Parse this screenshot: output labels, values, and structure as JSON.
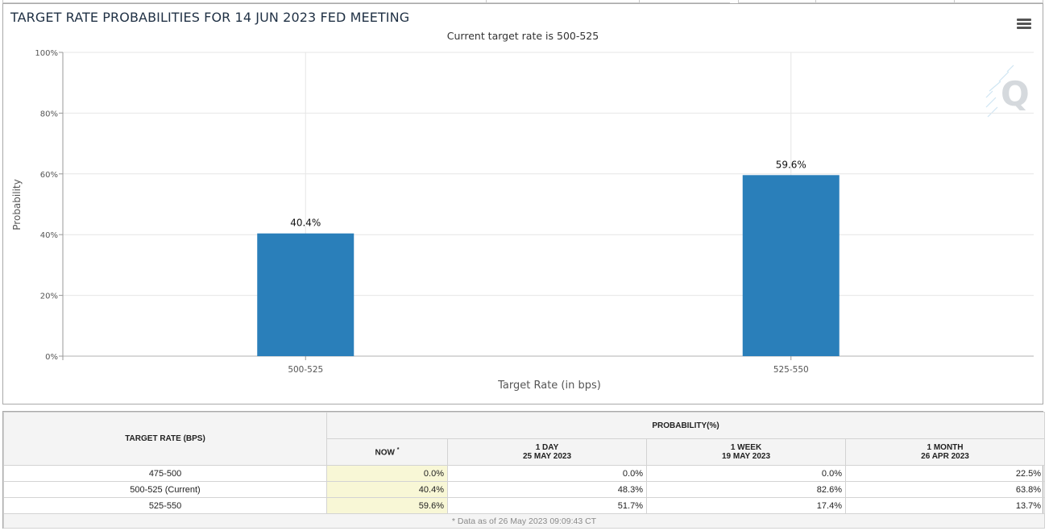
{
  "chart": {
    "title": "TARGET RATE PROBABILITIES FOR 14 JUN 2023 FED MEETING",
    "subtitle": "Current target rate is 500-525",
    "menu_icon": "hamburger-menu-icon",
    "watermark_icon": "quikstrike-q-logo",
    "watermark_letter": "Q"
  },
  "chart_data": {
    "type": "bar",
    "title": "TARGET RATE PROBABILITIES FOR 14 JUN 2023 FED MEETING",
    "subtitle": "Current target rate is 500-525",
    "xlabel": "Target Rate (in bps)",
    "ylabel": "Probability",
    "categories": [
      "500-525",
      "525-550"
    ],
    "values": [
      40.4,
      59.6
    ],
    "data_labels": [
      "40.4%",
      "59.6%"
    ],
    "ylim": [
      0,
      100
    ],
    "yticks": [
      0,
      20,
      40,
      60,
      80,
      100
    ],
    "ytick_labels": [
      "0%",
      "20%",
      "40%",
      "60%",
      "80%",
      "100%"
    ],
    "grid": true,
    "bar_color": "#2a7fba"
  },
  "table": {
    "col_target": "TARGET RATE (BPS)",
    "col_probability": "PROBABILITY(%)",
    "col_now": "NOW",
    "col_now_mark": "*",
    "col_1day": "1 DAY",
    "col_1day_date": "25 MAY 2023",
    "col_1week": "1 WEEK",
    "col_1week_date": "19 MAY 2023",
    "col_1month": "1 MONTH",
    "col_1month_date": "26 APR 2023",
    "rows": [
      {
        "rate": "475-500",
        "now": "0.0%",
        "day": "0.0%",
        "week": "0.0%",
        "month": "22.5%"
      },
      {
        "rate": "500-525 (Current)",
        "now": "40.4%",
        "day": "48.3%",
        "week": "82.6%",
        "month": "63.8%"
      },
      {
        "rate": "525-550",
        "now": "59.6%",
        "day": "51.7%",
        "week": "17.4%",
        "month": "13.7%"
      }
    ],
    "footnote": "* Data as of 26 May 2023 09:09:43 CT"
  },
  "colors": {
    "bar": "#2a7fba",
    "now_cell": "#f8f7d6",
    "title": "#1f3044"
  }
}
